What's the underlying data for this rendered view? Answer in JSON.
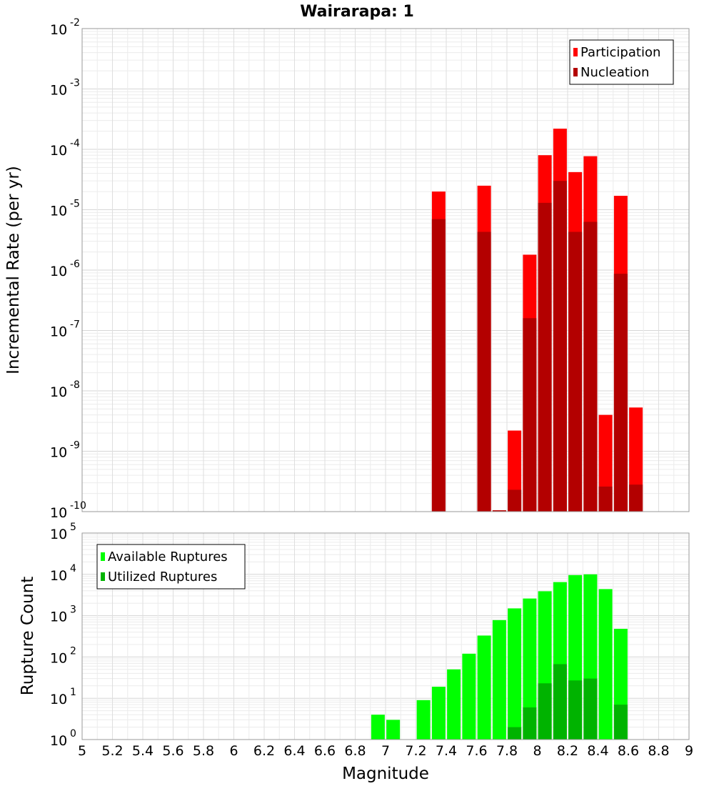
{
  "chart_data": [
    {
      "type": "bar",
      "title": "Wairarapa: 1",
      "xlabel": "",
      "ylabel": "Incremental Rate (per yr)",
      "yscale": "log",
      "ylim_exp": [
        -10,
        -2
      ],
      "xlim": [
        5,
        9
      ],
      "grid": true,
      "legend_position": "top-right",
      "series": [
        {
          "name": "Participation",
          "color": "#ff0000",
          "x": [
            7.35,
            7.65,
            7.75,
            7.85,
            7.95,
            8.05,
            8.15,
            8.25,
            8.35,
            8.45,
            8.55,
            8.65
          ],
          "values": [
            2e-05,
            2.5e-05,
            1.05e-10,
            2.2e-09,
            1.8e-06,
            8e-05,
            0.00022,
            4.2e-05,
            7.7e-05,
            4e-09,
            1.7e-05,
            5.3e-09
          ]
        },
        {
          "name": "Nucleation",
          "color": "#b30000",
          "x": [
            7.35,
            7.65,
            7.75,
            7.85,
            7.95,
            8.05,
            8.15,
            8.25,
            8.35,
            8.45,
            8.55,
            8.65
          ],
          "values": [
            7e-06,
            4.3e-06,
            1.05e-10,
            2.3e-10,
            1.6e-07,
            1.3e-05,
            3e-05,
            4.3e-06,
            6.3e-06,
            2.6e-10,
            8.7e-07,
            2.8e-10
          ]
        }
      ]
    },
    {
      "type": "bar",
      "title": "",
      "xlabel": "Magnitude",
      "ylabel": "Rupture Count",
      "yscale": "log",
      "ylim_exp": [
        0,
        5
      ],
      "xlim": [
        5,
        9
      ],
      "x_ticks": [
        "5",
        "5.2",
        "5.4",
        "5.6",
        "5.8",
        "6",
        "6.2",
        "6.4",
        "6.6",
        "6.8",
        "7",
        "7.2",
        "7.4",
        "7.6",
        "7.8",
        "8",
        "8.2",
        "8.4",
        "8.6",
        "8.8",
        "9"
      ],
      "grid": true,
      "legend_position": "top-left",
      "series": [
        {
          "name": "Available Ruptures",
          "color": "#00ff00",
          "x": [
            6.95,
            7.05,
            7.25,
            7.35,
            7.45,
            7.55,
            7.65,
            7.75,
            7.85,
            7.95,
            8.05,
            8.15,
            8.25,
            8.35,
            8.45,
            8.55
          ],
          "values": [
            4,
            3,
            9,
            19,
            50,
            120,
            330,
            780,
            1500,
            2600,
            3900,
            6500,
            9600,
            10000,
            4400,
            480
          ]
        },
        {
          "name": "Utilized Ruptures",
          "color": "#00b300",
          "x": [
            7.35,
            7.55,
            7.65,
            7.75,
            7.85,
            7.95,
            8.05,
            8.15,
            8.25,
            8.35,
            8.45,
            8.55,
            8.65
          ],
          "values": [
            1,
            1,
            1,
            1,
            2,
            6,
            23,
            67,
            27,
            30,
            1,
            7,
            1
          ]
        }
      ]
    }
  ]
}
